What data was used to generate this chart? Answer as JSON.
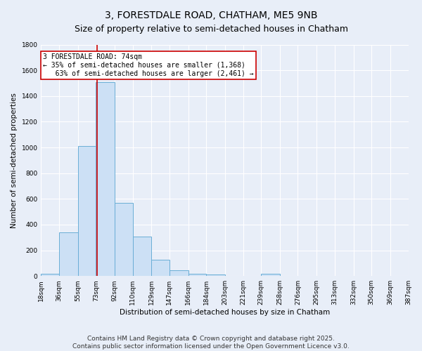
{
  "title": "3, FORESTDALE ROAD, CHATHAM, ME5 9NB",
  "subtitle": "Size of property relative to semi-detached houses in Chatham",
  "xlabel": "Distribution of semi-detached houses by size in Chatham",
  "ylabel": "Number of semi-detached properties",
  "bin_edges": [
    18,
    36,
    55,
    73,
    92,
    110,
    129,
    147,
    166,
    184,
    203,
    221,
    239,
    258,
    276,
    295,
    313,
    332,
    350,
    369,
    387
  ],
  "bin_counts": [
    20,
    340,
    1010,
    1510,
    570,
    305,
    125,
    45,
    20,
    12,
    0,
    0,
    15,
    0,
    0,
    0,
    0,
    0,
    0,
    0
  ],
  "bar_color": "#cce0f5",
  "bar_edge_color": "#6aaed6",
  "property_size": 74,
  "vline_color": "#cc0000",
  "annotation_text": "3 FORESTDALE ROAD: 74sqm\n← 35% of semi-detached houses are smaller (1,368)\n   63% of semi-detached houses are larger (2,461) →",
  "annotation_box_color": "#ffffff",
  "annotation_box_edge": "#cc0000",
  "ylim": [
    0,
    1800
  ],
  "yticks": [
    0,
    200,
    400,
    600,
    800,
    1000,
    1200,
    1400,
    1600,
    1800
  ],
  "tick_labels": [
    "18sqm",
    "36sqm",
    "55sqm",
    "73sqm",
    "92sqm",
    "110sqm",
    "129sqm",
    "147sqm",
    "166sqm",
    "184sqm",
    "203sqm",
    "221sqm",
    "239sqm",
    "258sqm",
    "276sqm",
    "295sqm",
    "313sqm",
    "332sqm",
    "350sqm",
    "369sqm",
    "387sqm"
  ],
  "footer_line1": "Contains HM Land Registry data © Crown copyright and database right 2025.",
  "footer_line2": "Contains public sector information licensed under the Open Government Licence v3.0.",
  "bg_color": "#e8eef8",
  "plot_bg_color": "#e8eef8",
  "grid_color": "#ffffff",
  "title_fontsize": 10,
  "subtitle_fontsize": 9,
  "axis_label_fontsize": 7.5,
  "tick_fontsize": 6.5,
  "footer_fontsize": 6.5
}
